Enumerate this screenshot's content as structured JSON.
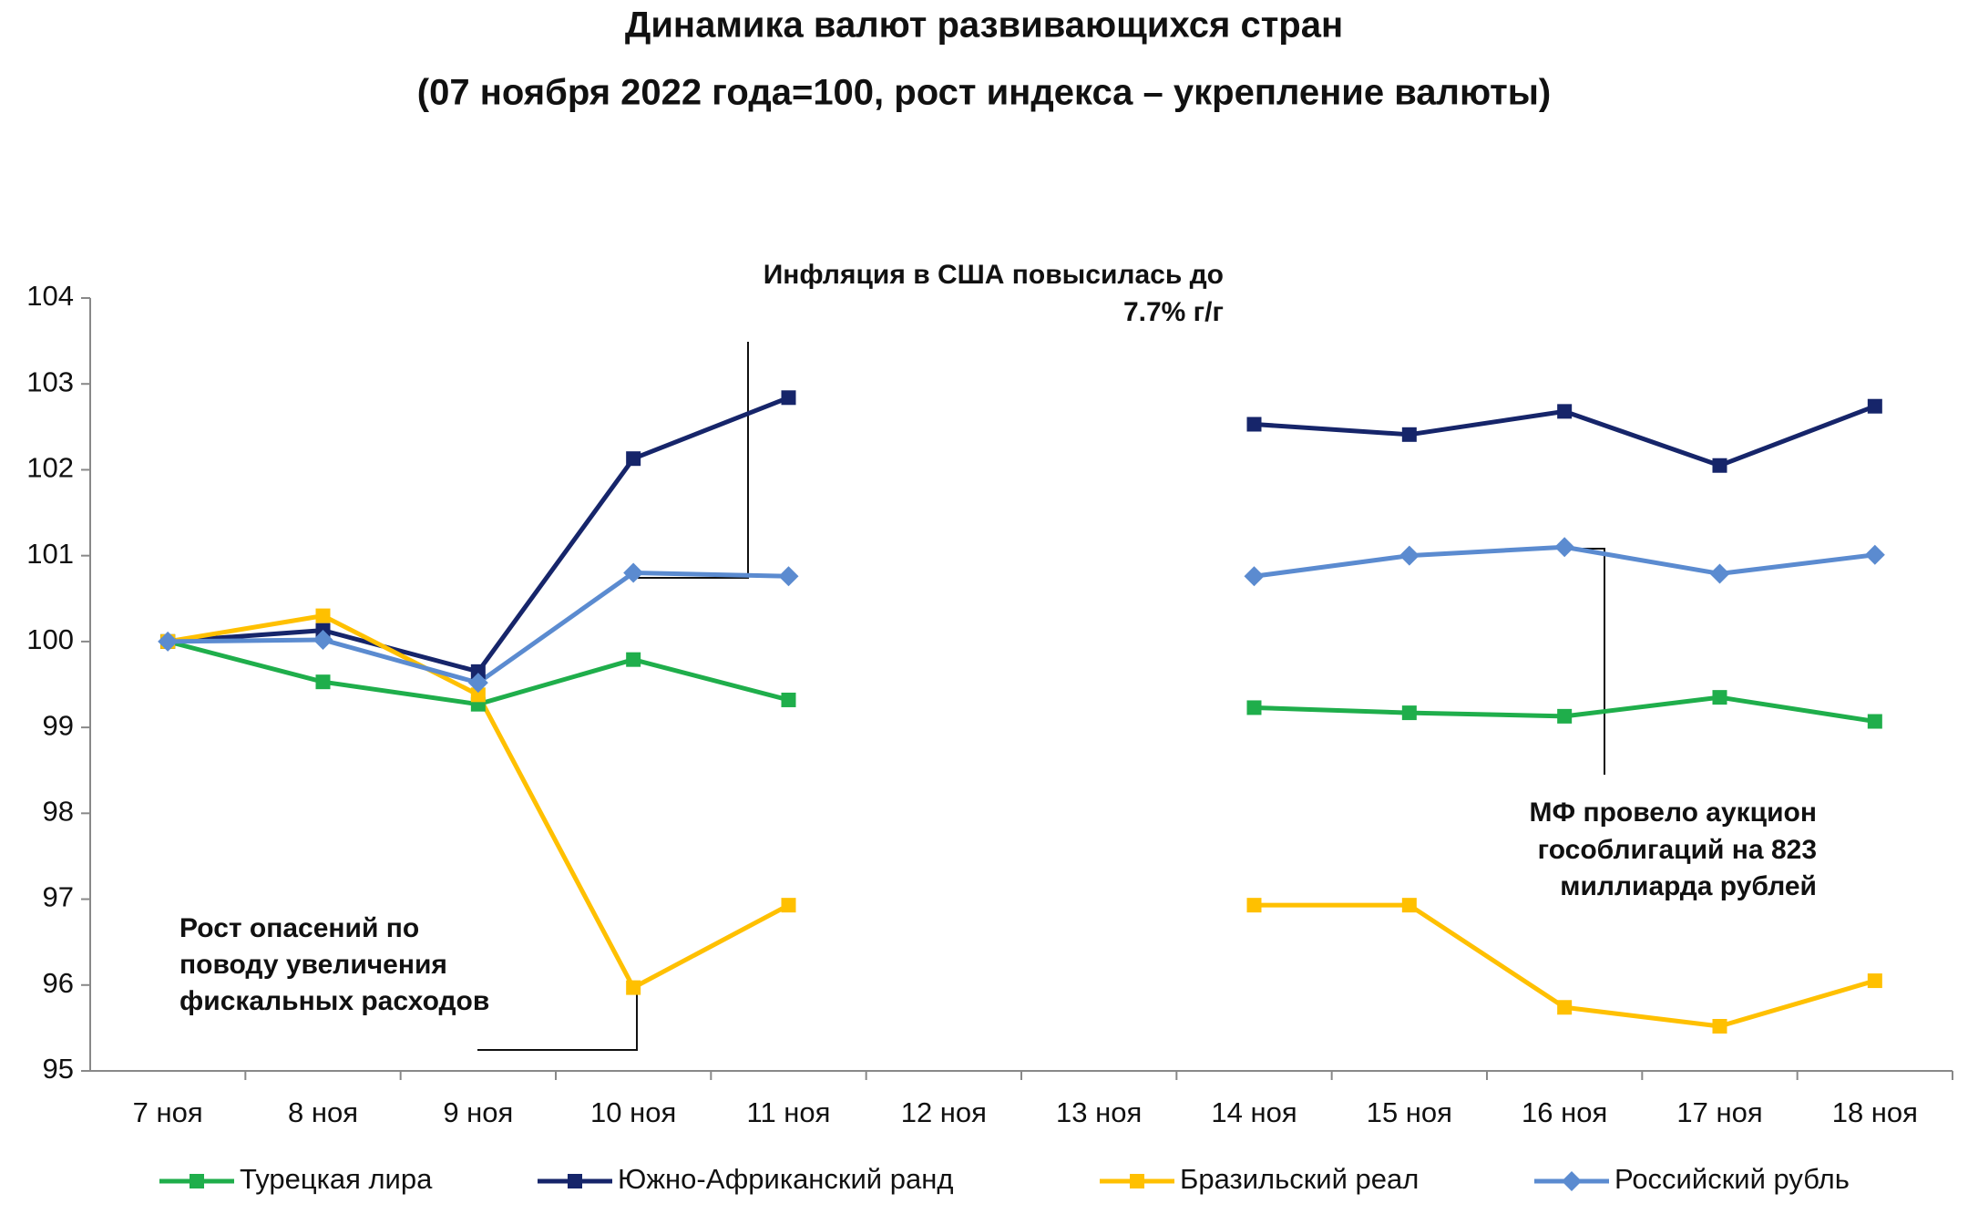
{
  "chart_data": {
    "type": "line",
    "title": "Динамика валют развивающихся стран",
    "subtitle": "(07 ноября 2022 года=100, рост индекса – укрепление валюты)",
    "categories": [
      "7 ноя",
      "8 ноя",
      "9 ноя",
      "10 ноя",
      "11 ноя",
      "12 ноя",
      "13 ноя",
      "14 ноя",
      "15 ноя",
      "16 ноя",
      "17 ноя",
      "18 ноя"
    ],
    "series": [
      {
        "name": "Турецкая лира",
        "color": "#1fae4b",
        "marker": "square",
        "values": [
          100,
          99.53,
          99.27,
          99.79,
          99.32,
          null,
          null,
          99.23,
          99.17,
          99.13,
          99.35,
          99.07
        ]
      },
      {
        "name": "Южно-Африканский ранд",
        "color": "#16256a",
        "marker": "square",
        "values": [
          100,
          100.13,
          99.65,
          102.13,
          102.84,
          null,
          null,
          102.53,
          102.41,
          102.68,
          102.05,
          102.74
        ]
      },
      {
        "name": "Бразильский реал",
        "color": "#ffc000",
        "marker": "square",
        "values": [
          100,
          100.3,
          99.38,
          95.97,
          96.93,
          null,
          null,
          96.93,
          96.93,
          95.74,
          95.52,
          96.05
        ]
      },
      {
        "name": "Российский рубль",
        "color": "#5b8bd0",
        "marker": "diamond",
        "values": [
          100,
          100.02,
          99.52,
          100.8,
          100.76,
          null,
          null,
          100.76,
          101.0,
          101.1,
          100.79,
          101.01
        ]
      }
    ],
    "ylim": [
      95,
      104
    ],
    "yticks": [
      95,
      96,
      97,
      98,
      99,
      100,
      101,
      102,
      103,
      104
    ],
    "grid": false,
    "legend": "bottom",
    "annotations": [
      [
        "Инфляция в США повысилась до",
        "7.7% г/г"
      ],
      [
        "Рост опасений по",
        "поводу увеличения",
        "фискальных расходов"
      ],
      [
        "МФ провело аукцион",
        "гособлигаций на 823",
        "миллиарда рублей"
      ]
    ]
  }
}
